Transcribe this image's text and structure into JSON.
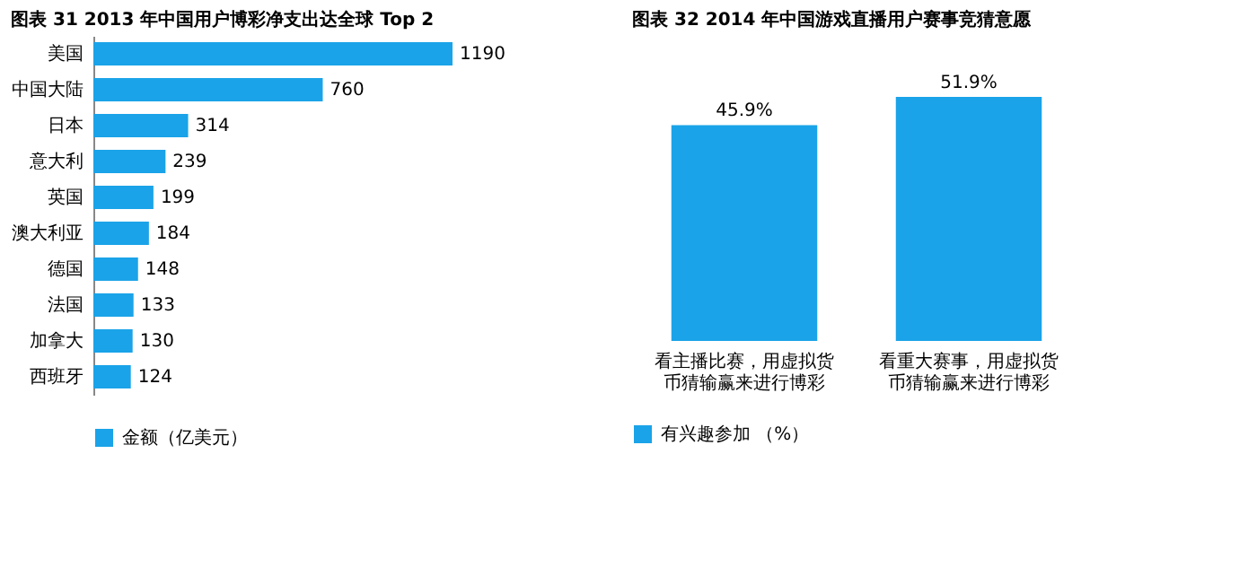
{
  "chart_data": [
    {
      "type": "bar",
      "title": "图表 31 2013 年中国用户博彩净支出达全球 Top 2",
      "orientation": "horizontal",
      "categories": [
        "美国",
        "中国大陆",
        "日本",
        "意大利",
        "英国",
        "澳大利亚",
        "德国",
        "法国",
        "加拿大",
        "西班牙"
      ],
      "series": [
        {
          "name": "金额（亿美元）",
          "color": "#1aa3e8",
          "values": [
            1190,
            760,
            314,
            239,
            199,
            184,
            148,
            133,
            130,
            124
          ]
        }
      ],
      "data_labels": true,
      "legend": "bottom"
    },
    {
      "type": "bar",
      "title": "图表 32 2014 年中国游戏直播用户赛事竞猜意愿",
      "categories": [
        "看主播比赛，用虚拟货币猜输赢来进行博彩",
        "看重大赛事，用虚拟货币猜输赢来进行博彩"
      ],
      "series": [
        {
          "name": "有兴趣参加 （%）",
          "color": "#1aa3e8",
          "values": [
            45.9,
            51.9
          ],
          "value_labels": [
            "45.9%",
            "51.9%"
          ]
        }
      ],
      "legend": "bottom"
    }
  ]
}
